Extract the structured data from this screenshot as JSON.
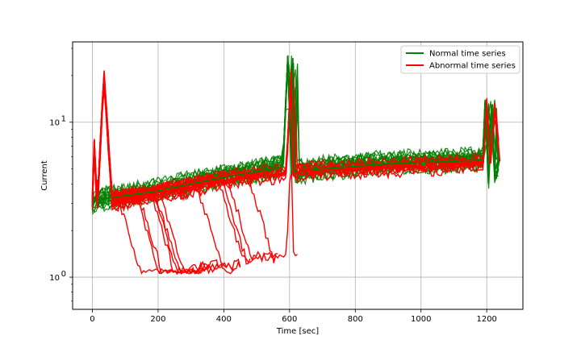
{
  "chart_data": {
    "type": "line",
    "title": "",
    "xlabel": "Time [sec]",
    "ylabel": "Current",
    "x_scale": "linear",
    "y_scale": "log",
    "xlim": [
      -60,
      1310
    ],
    "ylim": [
      0.62,
      33
    ],
    "x_ticks": [
      0,
      200,
      400,
      600,
      800,
      1000,
      1200
    ],
    "x_tick_labels": [
      "0",
      "200",
      "400",
      "600",
      "800",
      "1000",
      "1200"
    ],
    "y_ticks": [
      1,
      10
    ],
    "y_tick_labels": [
      "10^0",
      "10^1"
    ],
    "grid": true,
    "legend": "top-right",
    "colors": {
      "normal": "#008000",
      "abnormal": "#ff0000"
    },
    "series": [
      {
        "name": "Normal time series",
        "color": "#008000",
        "x": [
          0,
          10,
          40,
          80,
          120,
          160,
          200,
          250,
          300,
          350,
          400,
          450,
          500,
          550,
          580,
          595,
          605,
          610,
          615,
          620,
          640,
          700,
          800,
          900,
          1000,
          1100,
          1190,
          1195,
          1205,
          1215,
          1225,
          1240
        ],
        "y": [
          2.9,
          3.1,
          3.2,
          3.3,
          3.4,
          3.5,
          3.6,
          3.8,
          4.0,
          4.2,
          4.4,
          4.6,
          4.8,
          5.0,
          5.2,
          27,
          4.6,
          26,
          4.8,
          4.7,
          4.8,
          5.0,
          5.2,
          5.4,
          5.5,
          5.6,
          5.7,
          14,
          4.0,
          13,
          4.2,
          5.8
        ]
      },
      {
        "name": "Abnormal time series",
        "color": "#ff0000",
        "x": [
          0,
          5,
          15,
          35,
          60,
          100,
          150,
          200,
          250,
          300,
          350,
          400,
          450,
          500,
          550,
          590,
          605,
          610,
          620,
          640,
          700,
          800,
          900,
          1000,
          1100,
          1190,
          1200,
          1210,
          1225,
          1240
        ],
        "y": [
          3.0,
          7.5,
          2.8,
          20,
          3.1,
          3.2,
          3.3,
          3.5,
          3.6,
          3.8,
          4.0,
          4.2,
          4.4,
          4.5,
          4.6,
          4.7,
          22,
          4.6,
          4.7,
          4.8,
          4.9,
          5.0,
          5.1,
          5.2,
          5.3,
          5.5,
          13.5,
          5.4,
          12.5,
          5.6
        ]
      }
    ]
  }
}
